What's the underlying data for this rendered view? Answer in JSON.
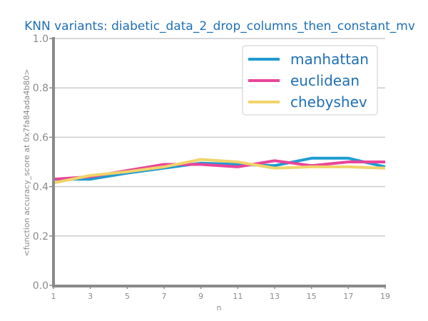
{
  "chart_data": {
    "type": "line",
    "title": "KNN variants: diabetic_data_2_drop_columns_then_constant_mv",
    "xlabel": "n",
    "ylabel": "<function accuracy_score at 0x7fa84ada4b80>",
    "x": [
      1,
      3,
      5,
      7,
      9,
      11,
      13,
      15,
      17,
      19
    ],
    "x_ticks": [
      "1",
      "3",
      "5",
      "7",
      "9",
      "11",
      "13",
      "15",
      "17",
      "19"
    ],
    "y_ticks": [
      "0.0",
      "0.2",
      "0.4",
      "0.6",
      "0.8",
      "1.0"
    ],
    "xlim": [
      1,
      19
    ],
    "ylim": [
      0,
      1
    ],
    "grid": "horizontal",
    "legend_position": "top-right",
    "series": [
      {
        "name": "manhattan",
        "color": "#1f9bd1",
        "values": [
          0.43,
          0.43,
          0.455,
          0.475,
          0.495,
          0.49,
          0.485,
          0.515,
          0.515,
          0.48
        ]
      },
      {
        "name": "euclidean",
        "color": "#e8459a",
        "values": [
          0.43,
          0.44,
          0.465,
          0.49,
          0.49,
          0.48,
          0.505,
          0.485,
          0.5,
          0.5
        ]
      },
      {
        "name": "chebyshev",
        "color": "#f0d46a",
        "values": [
          0.415,
          0.445,
          0.46,
          0.48,
          0.51,
          0.5,
          0.475,
          0.48,
          0.48,
          0.475
        ]
      }
    ]
  }
}
